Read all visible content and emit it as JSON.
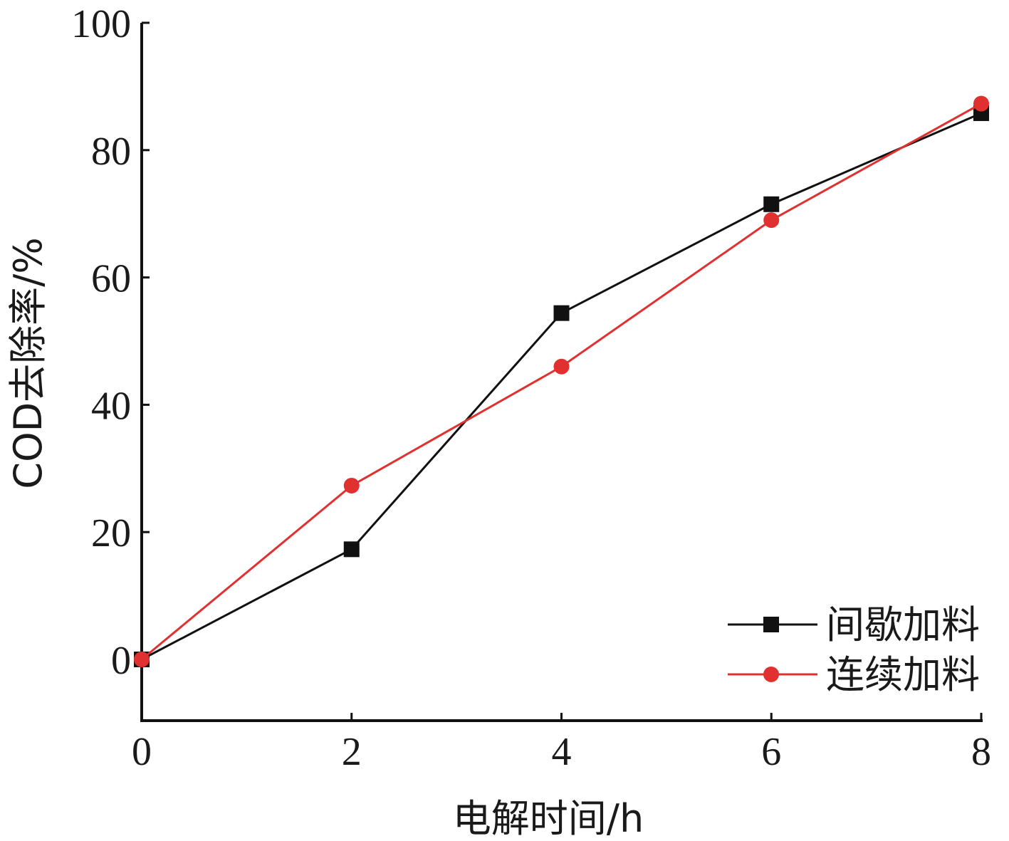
{
  "chart_data": {
    "type": "line",
    "xlabel": "电解时间/h",
    "ylabel": "COD去除率/%",
    "xlim": [
      0,
      8
    ],
    "ylim": [
      -10,
      100
    ],
    "x_ticks": [
      "0",
      "2",
      "4",
      "6",
      "8"
    ],
    "y_ticks": [
      "0",
      "20",
      "40",
      "60",
      "80",
      "100"
    ],
    "x": [
      0,
      2,
      4,
      6,
      8
    ],
    "series": [
      {
        "name": "间歇加料",
        "values": [
          0,
          17.3,
          54.4,
          71.5,
          85.8
        ],
        "color": "#111111",
        "marker": "square"
      },
      {
        "name": "连续加料",
        "values": [
          0,
          27.3,
          46.0,
          69.0,
          87.3
        ],
        "color": "#e03030",
        "marker": "circle"
      }
    ],
    "grid": false,
    "legend_position": "bottom-right"
  }
}
